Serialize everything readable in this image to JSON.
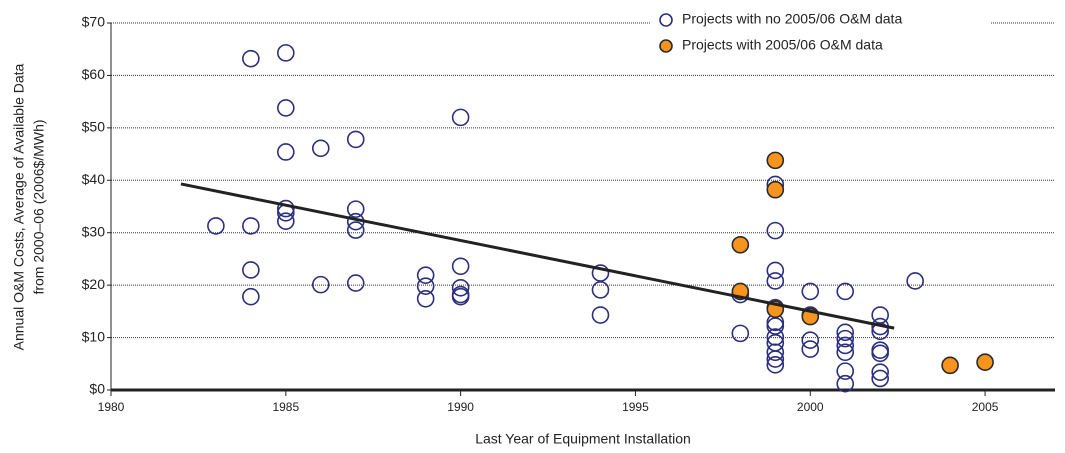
{
  "chart_data": {
    "type": "scatter",
    "xlabel": "Last Year of Equipment Installation",
    "ylabel": [
      "Annual O&M Costs, Average of Available Data",
      "from 2000–06 (2006$/MWh)"
    ],
    "xlim": [
      1980,
      2007
    ],
    "xticks": [
      1980,
      1985,
      1990,
      1995,
      2000,
      2005
    ],
    "ylim": [
      0,
      70
    ],
    "yticks": [
      {
        "value": 0,
        "label": "$0"
      },
      {
        "value": 10,
        "label": "$10"
      },
      {
        "value": 20,
        "label": "$20"
      },
      {
        "value": 30,
        "label": "$30"
      },
      {
        "value": 40,
        "label": "$40"
      },
      {
        "value": 50,
        "label": "$50"
      },
      {
        "value": 60,
        "label": "$60"
      },
      {
        "value": 70,
        "label": "$70"
      }
    ],
    "grid": true,
    "legend": "upper right",
    "series": [
      {
        "name": "Projects with no 2005/06 O&M data",
        "color": "#2b2f7f",
        "fill": "none",
        "x": [
          1983,
          1984,
          1984,
          1984,
          1984,
          1985,
          1985,
          1985,
          1985,
          1985,
          1985,
          1986,
          1986,
          1987,
          1987,
          1987,
          1987,
          1987,
          1989,
          1989,
          1989,
          1990,
          1990,
          1990,
          1990,
          1990,
          1994,
          1994,
          1994,
          1998,
          1998,
          1999,
          1999,
          1999,
          1999,
          1999,
          1999,
          1999,
          1999,
          1999,
          1999,
          1999,
          1999,
          2000,
          2000,
          2000,
          2000,
          2001,
          2001,
          2001,
          2001,
          2001,
          2001,
          2001,
          2002,
          2002,
          2002,
          2002,
          2002,
          2002,
          2002,
          2003
        ],
        "values": [
          31.3,
          63.2,
          31.3,
          22.9,
          17.8,
          64.3,
          53.8,
          45.4,
          34.6,
          33.8,
          32.2,
          46.1,
          20.1,
          47.8,
          34.5,
          32.1,
          30.5,
          20.4,
          21.9,
          19.8,
          17.4,
          52.0,
          23.6,
          19.5,
          18.2,
          17.8,
          22.3,
          19.1,
          14.3,
          18.2,
          10.8,
          39.2,
          30.4,
          22.8,
          20.8,
          15.7,
          12.9,
          12.2,
          10.1,
          9.0,
          7.2,
          5.9,
          4.8,
          18.8,
          14.3,
          9.5,
          7.8,
          18.8,
          11.0,
          9.8,
          8.5,
          7.2,
          3.6,
          1.2,
          14.3,
          12.1,
          11.2,
          7.6,
          7.0,
          3.4,
          2.2,
          20.8
        ]
      },
      {
        "name": "Projects with 2005/06 O&M data",
        "color": "#2a2a2a",
        "fill": "#f7941d",
        "x": [
          1998,
          1998,
          1999,
          1999,
          1999,
          2000,
          2004,
          2005
        ],
        "values": [
          27.7,
          18.8,
          43.8,
          38.2,
          15.4,
          14.0,
          4.7,
          5.3
        ]
      }
    ],
    "trendline": {
      "x": [
        1982,
        2002.4
      ],
      "values": [
        39.3,
        11.8
      ],
      "color": "#222222"
    }
  }
}
